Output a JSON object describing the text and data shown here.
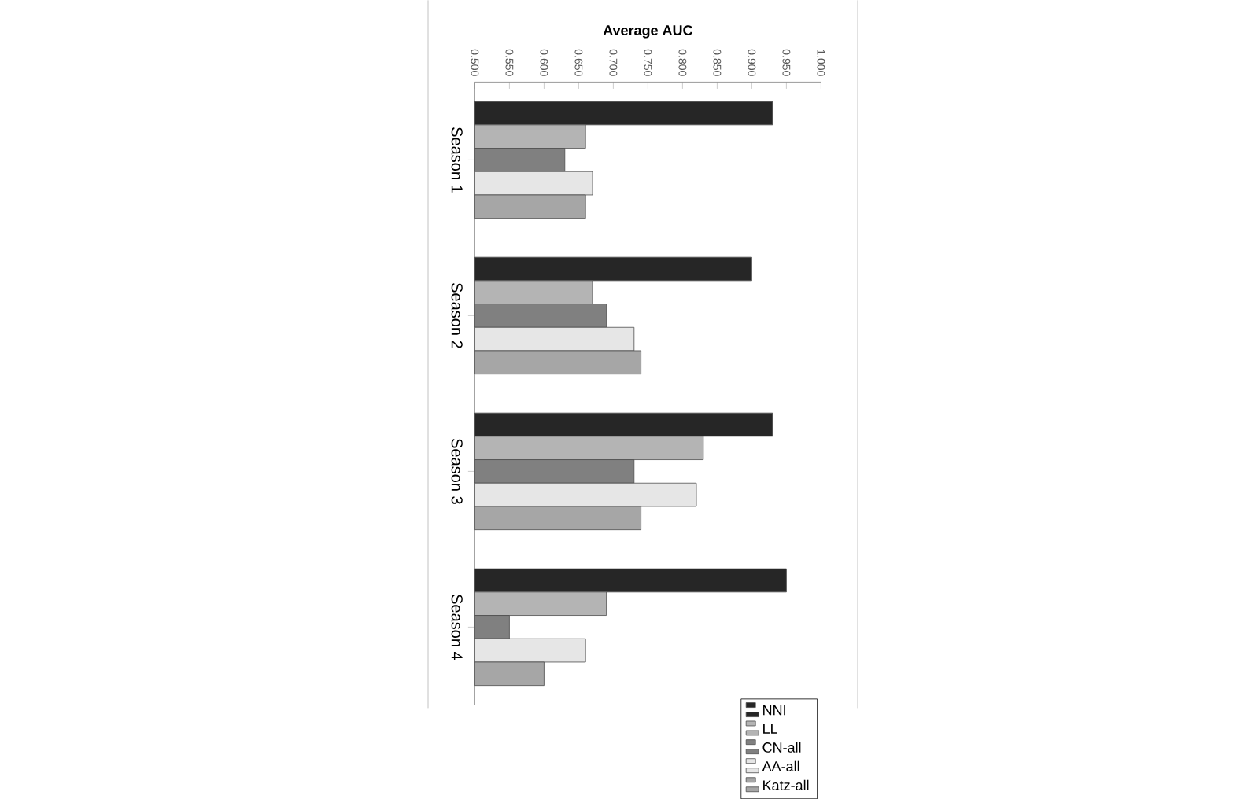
{
  "chart_data": {
    "type": "bar",
    "orientation": "horizontal",
    "xlabel": "Average AUC",
    "categories": [
      "Season 1",
      "Season 2",
      "Season 3",
      "Season 4"
    ],
    "series": [
      {
        "name": "NNI",
        "color": "#262626",
        "values": [
          0.93,
          0.9,
          0.93,
          0.95
        ]
      },
      {
        "name": "LL",
        "color": "#b4b4b4",
        "values": [
          0.66,
          0.67,
          0.83,
          0.69
        ]
      },
      {
        "name": "CN-all",
        "color": "#808080",
        "values": [
          0.63,
          0.69,
          0.73,
          0.55
        ]
      },
      {
        "name": "AA-all",
        "color": "#e6e6e6",
        "values": [
          0.67,
          0.73,
          0.82,
          0.66
        ]
      },
      {
        "name": "Katz-all",
        "color": "#a6a6a6",
        "values": [
          0.66,
          0.74,
          0.74,
          0.6
        ]
      }
    ],
    "xlim": [
      0.5,
      1.0
    ],
    "xticks": [
      {
        "value": 0.5,
        "label": "0.500"
      },
      {
        "value": 0.55,
        "label": "0.550"
      },
      {
        "value": 0.6,
        "label": "0.600"
      },
      {
        "value": 0.65,
        "label": "0.650"
      },
      {
        "value": 0.7,
        "label": "0.700"
      },
      {
        "value": 0.75,
        "label": "0.750"
      },
      {
        "value": 0.8,
        "label": "0.800"
      },
      {
        "value": 0.85,
        "label": "0.850"
      },
      {
        "value": 0.9,
        "label": "0.900"
      },
      {
        "value": 0.95,
        "label": "0.950"
      },
      {
        "value": 1.0,
        "label": "1.000"
      }
    ],
    "legend": "bottom right"
  }
}
